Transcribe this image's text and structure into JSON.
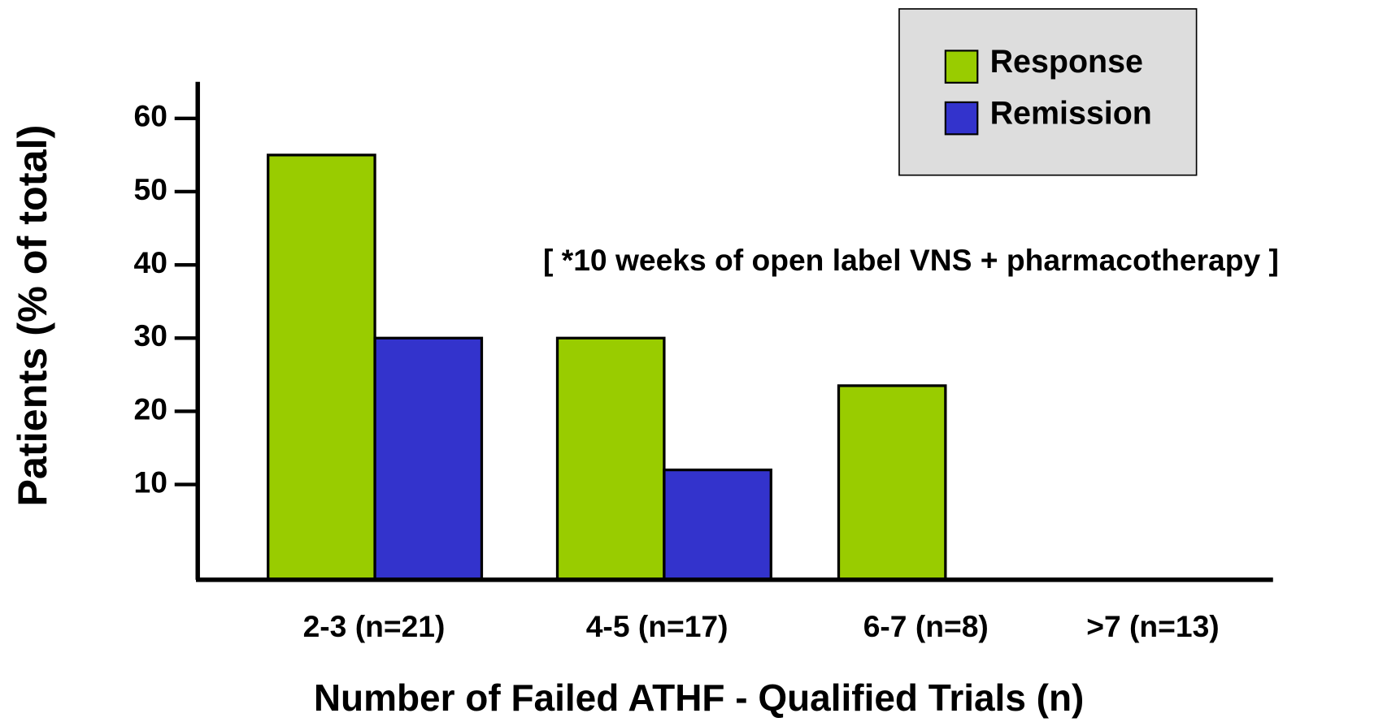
{
  "chart_data": {
    "type": "bar",
    "categories": [
      "2-3 (n=21)",
      "4-5 (n=17)",
      "6-7 (n=8)",
      ">7 (n=13)"
    ],
    "series": [
      {
        "name": "Response",
        "color": "#99cc00",
        "values": [
          55,
          30,
          23.5,
          0
        ]
      },
      {
        "name": "Remission",
        "color": "#3333cc",
        "values": [
          30,
          12,
          0,
          0
        ]
      }
    ],
    "ylim": [
      -3,
      65
    ],
    "yticks": [
      10,
      20,
      30,
      40,
      50,
      60
    ],
    "y_label": "Patients (% of total)",
    "x_label": "Number of Failed ATHF - Qualified Trials (n)",
    "annotation": "[ *10 weeks of open label VNS + pharmacotherapy ]",
    "legend": "upper right"
  }
}
